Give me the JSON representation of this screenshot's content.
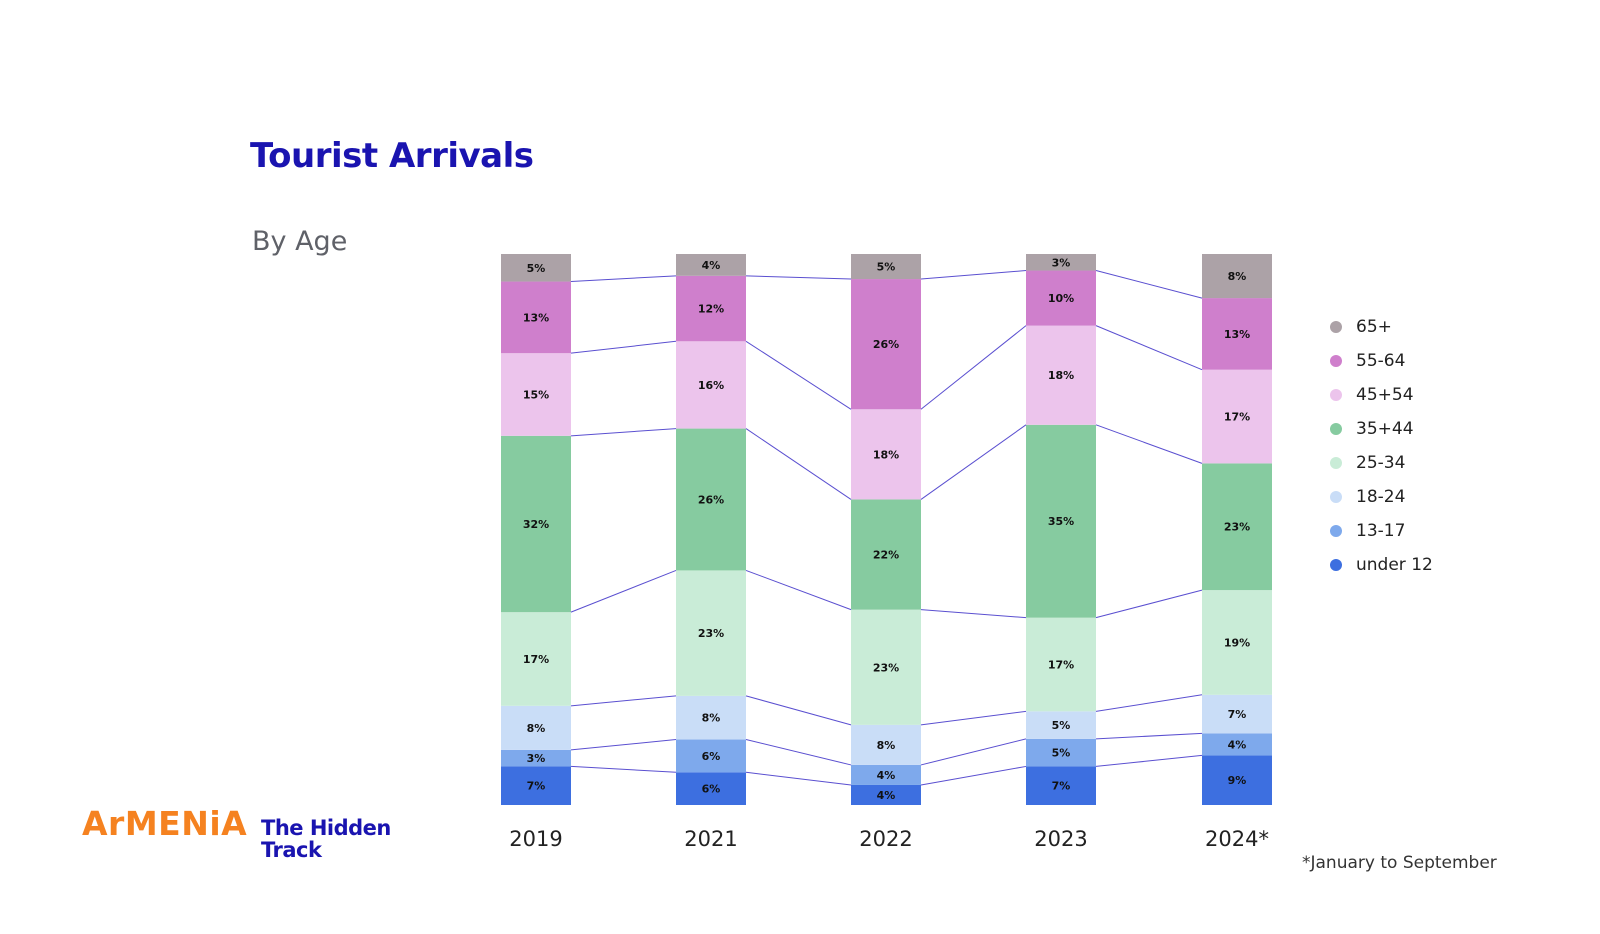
{
  "header": {
    "title": "Tourist Arrivals",
    "subtitle": "By Age"
  },
  "brand": {
    "name": "ArMENiA",
    "tagline_line1": "The Hidden",
    "tagline_line2": "Track"
  },
  "footnote": "*January to September",
  "colors": {
    "title": "#1a14b0",
    "connector": "#5a4fd0",
    "brand_orange": "#f58220"
  },
  "chart_data": {
    "type": "bar",
    "stacked": true,
    "percent": true,
    "categories": [
      "2019",
      "2021",
      "2022",
      "2023",
      "2024*"
    ],
    "series": [
      {
        "name": "under 12",
        "color": "#3d6fe0",
        "values": [
          7,
          6,
          4,
          7,
          9
        ],
        "labels": [
          "7%",
          "6%",
          "4%",
          "7%",
          "9%"
        ]
      },
      {
        "name": "13-17",
        "color": "#7ea9ec",
        "values": [
          3,
          6,
          4,
          5,
          4
        ],
        "labels": [
          "3%",
          "6%",
          "4%",
          "5%",
          "4%"
        ]
      },
      {
        "name": "18-24",
        "color": "#c9ddf7",
        "values": [
          8,
          8,
          8,
          5,
          7
        ],
        "labels": [
          "8%",
          "8%",
          "8%",
          "5%",
          "7%"
        ]
      },
      {
        "name": "25-34",
        "color": "#c9ecd7",
        "values": [
          17,
          23,
          23,
          17,
          19
        ],
        "labels": [
          "17%",
          "23%",
          "23%",
          "17%",
          "19%"
        ]
      },
      {
        "name": "35+44",
        "color": "#86cba0",
        "values": [
          32,
          26,
          22,
          35,
          23
        ],
        "labels": [
          "32%",
          "26%",
          "22%",
          "35%",
          "23%"
        ]
      },
      {
        "name": "45+54",
        "color": "#ecc4ec",
        "values": [
          15,
          16,
          18,
          18,
          17
        ],
        "labels": [
          "15%",
          "16%",
          "18%",
          "18%",
          "17%"
        ]
      },
      {
        "name": "55-64",
        "color": "#cf7fcc",
        "values": [
          13,
          12,
          26,
          10,
          13
        ],
        "labels": [
          "13%",
          "12%",
          "26%",
          "10%",
          "13%"
        ]
      },
      {
        "name": "65+",
        "color": "#aca2a7",
        "values": [
          5,
          4,
          5,
          3,
          8
        ],
        "labels": [
          "5%",
          "4%",
          "5%",
          "3%",
          "8%"
        ]
      }
    ],
    "legend_order": [
      "65+",
      "55-64",
      "45+54",
      "35+44",
      "25-34",
      "18-24",
      "13-17",
      "under 12"
    ],
    "legend_position": "right",
    "grid": false
  }
}
